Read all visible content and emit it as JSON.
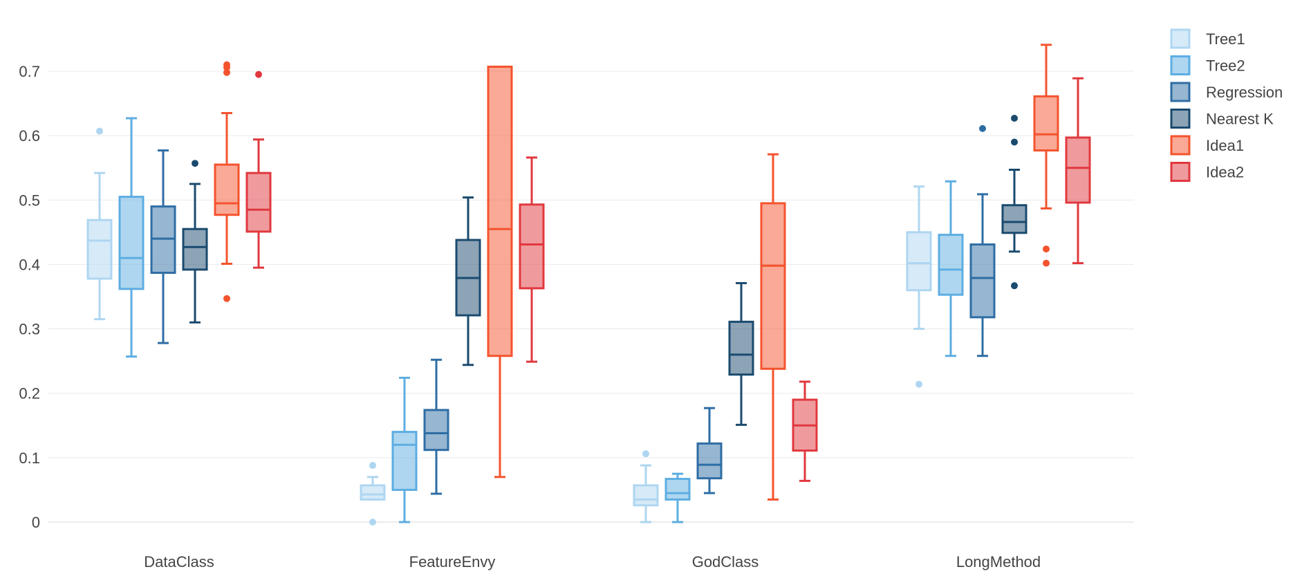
{
  "chart_data": {
    "type": "box",
    "categories": [
      "DataClass",
      "FeatureEnvy",
      "GodClass",
      "LongMethod"
    ],
    "yticks": [
      "0",
      "0.1",
      "0.2",
      "0.3",
      "0.4",
      "0.5",
      "0.6",
      "0.7"
    ],
    "ytick_values": [
      0,
      0.1,
      0.2,
      0.3,
      0.4,
      0.5,
      0.6,
      0.7
    ],
    "ylim": [
      -0.04,
      0.77
    ],
    "grid": true,
    "legend_position": "top-right",
    "series": [
      {
        "name": "Tree1",
        "color": "#aed6f1",
        "boxes": [
          {
            "min": 0.315,
            "q1": 0.378,
            "median": 0.437,
            "q3": 0.469,
            "max": 0.542,
            "outliers": [
              0.607
            ]
          },
          {
            "min": 0.035,
            "q1": 0.035,
            "median": 0.043,
            "q3": 0.057,
            "max": 0.07,
            "outliers": [
              0.088,
              0.0
            ]
          },
          {
            "min": 0.0,
            "q1": 0.026,
            "median": 0.035,
            "q3": 0.057,
            "max": 0.088,
            "outliers": [
              0.106
            ]
          },
          {
            "min": 0.3,
            "q1": 0.36,
            "median": 0.402,
            "q3": 0.45,
            "max": 0.521,
            "outliers": [
              0.214
            ]
          }
        ]
      },
      {
        "name": "Tree2",
        "color": "#5dade2",
        "boxes": [
          {
            "min": 0.257,
            "q1": 0.362,
            "median": 0.41,
            "q3": 0.505,
            "max": 0.627,
            "outliers": []
          },
          {
            "min": 0.0,
            "q1": 0.05,
            "median": 0.12,
            "q3": 0.14,
            "max": 0.224,
            "outliers": []
          },
          {
            "min": 0.0,
            "q1": 0.035,
            "median": 0.045,
            "q3": 0.067,
            "max": 0.075,
            "outliers": []
          },
          {
            "min": 0.258,
            "q1": 0.353,
            "median": 0.392,
            "q3": 0.446,
            "max": 0.529,
            "outliers": []
          }
        ]
      },
      {
        "name": "Regression",
        "color": "#2e6da4",
        "boxes": [
          {
            "min": 0.278,
            "q1": 0.387,
            "median": 0.44,
            "q3": 0.49,
            "max": 0.577,
            "outliers": []
          },
          {
            "min": 0.044,
            "q1": 0.112,
            "median": 0.138,
            "q3": 0.174,
            "max": 0.252,
            "outliers": []
          },
          {
            "min": 0.045,
            "q1": 0.068,
            "median": 0.089,
            "q3": 0.122,
            "max": 0.177,
            "outliers": []
          },
          {
            "min": 0.258,
            "q1": 0.318,
            "median": 0.379,
            "q3": 0.431,
            "max": 0.509,
            "outliers": [
              0.611
            ]
          }
        ]
      },
      {
        "name": "Nearest K",
        "color": "#1a4a6e",
        "boxes": [
          {
            "min": 0.31,
            "q1": 0.392,
            "median": 0.427,
            "q3": 0.455,
            "max": 0.525,
            "outliers": [
              0.557
            ]
          },
          {
            "min": 0.244,
            "q1": 0.321,
            "median": 0.379,
            "q3": 0.438,
            "max": 0.504,
            "outliers": []
          },
          {
            "min": 0.151,
            "q1": 0.229,
            "median": 0.26,
            "q3": 0.311,
            "max": 0.371,
            "outliers": []
          },
          {
            "min": 0.42,
            "q1": 0.449,
            "median": 0.466,
            "q3": 0.492,
            "max": 0.547,
            "outliers": [
              0.627,
              0.59,
              0.367
            ]
          }
        ]
      },
      {
        "name": "Idea1",
        "color": "#f4532e",
        "boxes": [
          {
            "min": 0.401,
            "q1": 0.477,
            "median": 0.495,
            "q3": 0.555,
            "max": 0.635,
            "outliers": [
              0.71,
              0.706,
              0.698,
              0.347
            ]
          },
          {
            "min": 0.07,
            "q1": 0.258,
            "median": 0.455,
            "q3": 0.707,
            "max": 0.707,
            "outliers": []
          },
          {
            "min": 0.035,
            "q1": 0.238,
            "median": 0.398,
            "q3": 0.495,
            "max": 0.571,
            "outliers": []
          },
          {
            "min": 0.487,
            "q1": 0.577,
            "median": 0.602,
            "q3": 0.661,
            "max": 0.741,
            "outliers": [
              0.424,
              0.402
            ]
          }
        ]
      },
      {
        "name": "Idea2",
        "color": "#e0383e",
        "boxes": [
          {
            "min": 0.395,
            "q1": 0.451,
            "median": 0.485,
            "q3": 0.542,
            "max": 0.594,
            "outliers": [
              0.695
            ]
          },
          {
            "min": 0.249,
            "q1": 0.363,
            "median": 0.431,
            "q3": 0.493,
            "max": 0.566,
            "outliers": []
          },
          {
            "min": 0.064,
            "q1": 0.111,
            "median": 0.15,
            "q3": 0.19,
            "max": 0.218,
            "outliers": []
          },
          {
            "min": 0.402,
            "q1": 0.496,
            "median": 0.55,
            "q3": 0.597,
            "max": 0.689,
            "outliers": []
          }
        ]
      }
    ]
  }
}
